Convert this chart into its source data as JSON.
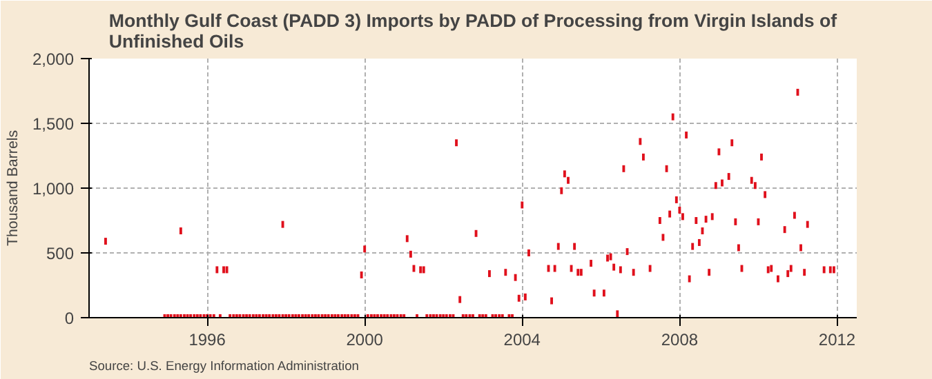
{
  "chart_data": {
    "type": "scatter",
    "title": "Monthly Gulf Coast (PADD 3) Imports by PADD of Processing from Virgin Islands of Unfinished Oils",
    "ylabel": "Thousand Barrels",
    "annotations": [
      "Source: U.S. Energy Information Administration"
    ],
    "xlim": [
      1993,
      2012.5
    ],
    "xticks": [
      1996,
      2000,
      2004,
      2008,
      2012
    ],
    "ylim": [
      0,
      2000
    ],
    "yticks": [
      {
        "value": 0,
        "label": "0"
      },
      {
        "value": 500,
        "label": "500"
      },
      {
        "value": 1000,
        "label": "1,000"
      },
      {
        "value": 1500,
        "label": "1,500"
      },
      {
        "value": 2000,
        "label": "2,000"
      }
    ],
    "grid": true,
    "marker": "square",
    "series": [
      {
        "color": "#e0101c",
        "x": [
          1993.42,
          1995.33,
          1996.25,
          1996.42,
          1996.5,
          1997.92,
          1999.92,
          2000.0,
          2001.08,
          2001.17,
          2001.25,
          2001.42,
          2001.5,
          2002.33,
          2002.42,
          2002.83,
          2003.17,
          2003.58,
          2003.83,
          2003.92,
          2004.0,
          2004.08,
          2004.17,
          2004.67,
          2004.75,
          2004.83,
          2004.92,
          2005.0,
          2005.08,
          2005.17,
          2005.25,
          2005.33,
          2005.42,
          2005.5,
          2005.75,
          2005.83,
          2006.08,
          2006.17,
          2006.25,
          2006.33,
          2006.42,
          2006.5,
          2006.58,
          2006.67,
          2006.83,
          2007.0,
          2007.08,
          2007.25,
          2007.5,
          2007.58,
          2007.67,
          2007.75,
          2007.83,
          2007.92,
          2008.0,
          2008.08,
          2008.17,
          2008.25,
          2008.33,
          2008.42,
          2008.5,
          2008.58,
          2008.67,
          2008.75,
          2008.83,
          2008.92,
          2009.0,
          2009.08,
          2009.25,
          2009.33,
          2009.42,
          2009.5,
          2009.58,
          2009.83,
          2009.92,
          2010.0,
          2010.08,
          2010.17,
          2010.25,
          2010.33,
          2010.5,
          2010.67,
          2010.75,
          2010.83,
          2010.92,
          2011.0,
          2011.08,
          2011.17,
          2011.25,
          2011.67,
          2011.83,
          2011.92,
          1994.92,
          1995.0,
          1995.08,
          1995.17,
          1995.25,
          1995.33,
          1995.42,
          1995.5,
          1995.58,
          1995.67,
          1995.75,
          1995.83,
          1995.92,
          1996.0,
          1996.08,
          1996.17,
          1996.33,
          1996.58,
          1996.67,
          1996.75,
          1996.83,
          1996.92,
          1997.0,
          1997.08,
          1997.17,
          1997.25,
          1997.33,
          1997.42,
          1997.5,
          1997.58,
          1997.67,
          1997.75,
          1997.83,
          1997.92,
          1998.0,
          1998.08,
          1998.17,
          1998.25,
          1998.33,
          1998.42,
          1998.5,
          1998.58,
          1998.67,
          1998.75,
          1998.83,
          1998.92,
          1999.0,
          1999.08,
          1999.17,
          1999.25,
          1999.33,
          1999.42,
          1999.5,
          1999.58,
          1999.67,
          1999.75,
          1999.83,
          2000.08,
          2000.17,
          2000.25,
          2000.33,
          2000.42,
          2000.5,
          2000.58,
          2000.67,
          2000.75,
          2000.83,
          2000.92,
          2001.0,
          2001.33,
          2001.58,
          2001.67,
          2001.75,
          2001.83,
          2001.92,
          2002.0,
          2002.08,
          2002.17,
          2002.25,
          2002.5,
          2002.58,
          2002.67,
          2002.75,
          2002.92,
          2003.0,
          2003.08,
          2003.25,
          2003.33,
          2003.42,
          2003.5,
          2003.67,
          2003.75
        ],
        "values": [
          590,
          670,
          370,
          370,
          370,
          720,
          330,
          530,
          610,
          490,
          380,
          370,
          370,
          1350,
          140,
          650,
          340,
          350,
          310,
          150,
          870,
          160,
          500,
          380,
          130,
          380,
          550,
          980,
          1110,
          1060,
          380,
          550,
          350,
          350,
          420,
          190,
          190,
          460,
          470,
          390,
          30,
          370,
          1150,
          510,
          350,
          1360,
          1240,
          380,
          750,
          620,
          1150,
          800,
          1550,
          910,
          830,
          780,
          1410,
          300,
          550,
          750,
          580,
          670,
          760,
          350,
          780,
          1020,
          1280,
          1040,
          1090,
          1350,
          740,
          540,
          380,
          1060,
          1020,
          740,
          1240,
          950,
          370,
          380,
          300,
          680,
          340,
          380,
          790,
          1740,
          540,
          350,
          720,
          370,
          370,
          370,
          0,
          0,
          0,
          0,
          0,
          0,
          0,
          0,
          0,
          0,
          0,
          0,
          0,
          0,
          0,
          0,
          0,
          0,
          0,
          0,
          0,
          0,
          0,
          0,
          0,
          0,
          0,
          0,
          0,
          0,
          0,
          0,
          0,
          0,
          0,
          0,
          0,
          0,
          0,
          0,
          0,
          0,
          0,
          0,
          0,
          0,
          0,
          0,
          0,
          0,
          0,
          0,
          0,
          0,
          0,
          0,
          0,
          0,
          0,
          0,
          0,
          0,
          0,
          0,
          0,
          0,
          0,
          0,
          0,
          0,
          0,
          0,
          0,
          0,
          0,
          0,
          0,
          0,
          0,
          0,
          0,
          0,
          0,
          0,
          0,
          0,
          0,
          0,
          0,
          0,
          0,
          0
        ]
      }
    ]
  }
}
